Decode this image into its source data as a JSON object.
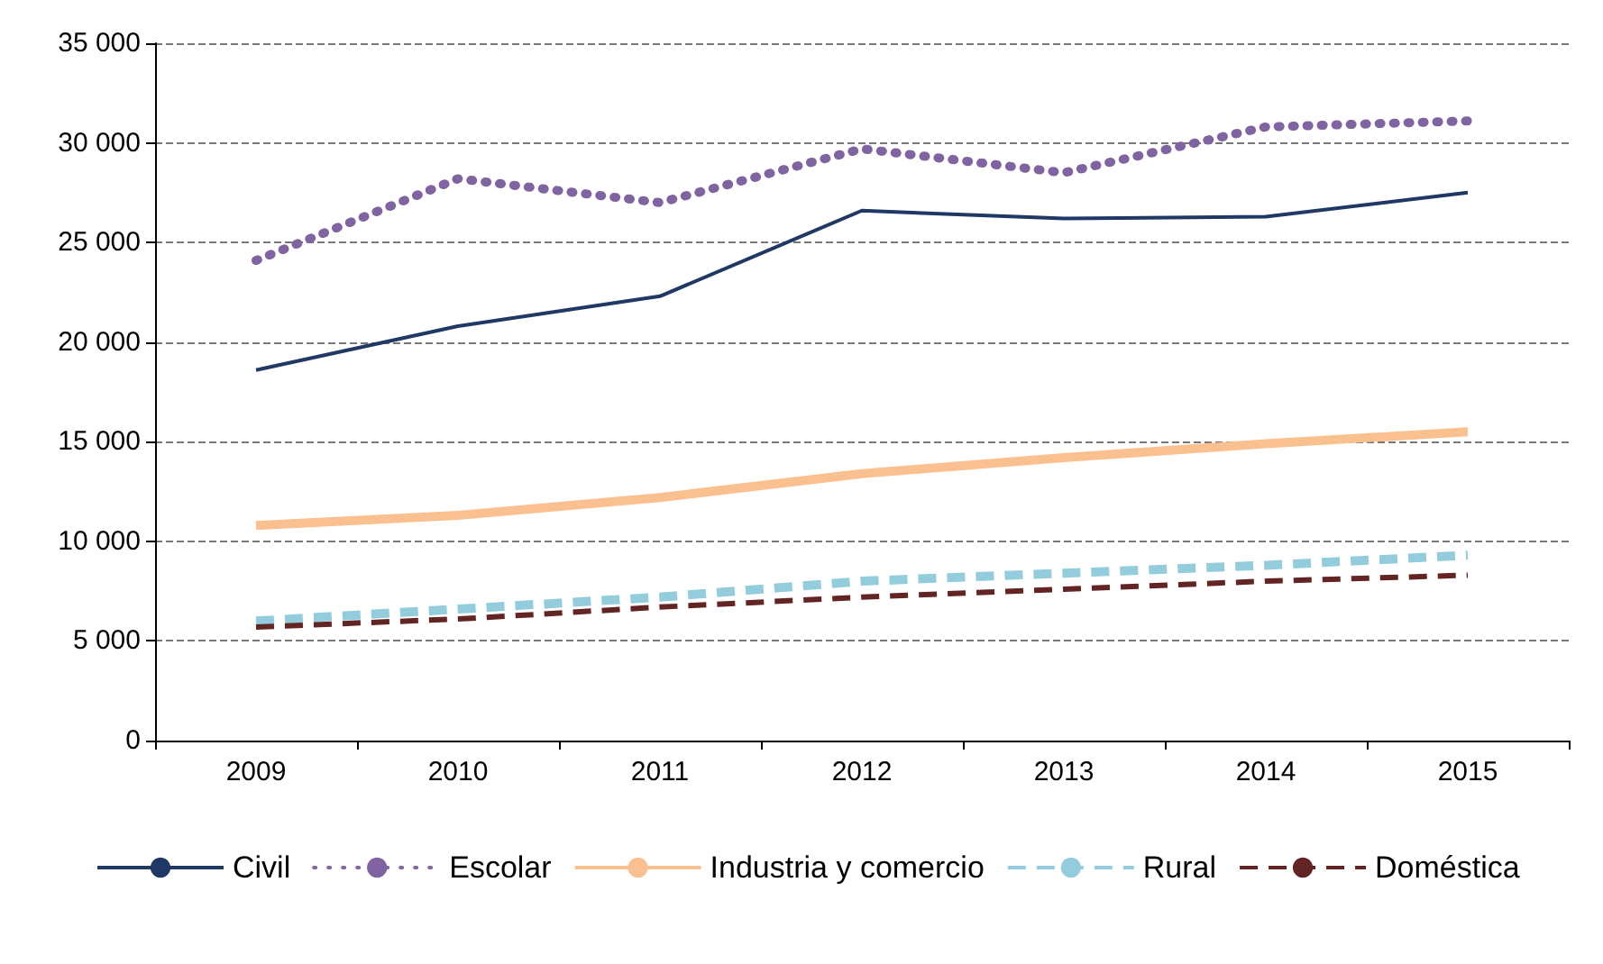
{
  "chart_data": {
    "type": "line",
    "categories": [
      "2009",
      "2010",
      "2011",
      "2012",
      "2013",
      "2014",
      "2015"
    ],
    "series": [
      {
        "name": "Civil",
        "color": "#1f3864",
        "line_style": "solid",
        "values": [
          18600,
          20800,
          22300,
          26600,
          26200,
          26300,
          27500
        ]
      },
      {
        "name": "Escolar",
        "color": "#8064a2",
        "line_style": "dotted",
        "values": [
          24100,
          28200,
          27000,
          29700,
          28500,
          30800,
          31100
        ]
      },
      {
        "name": "Industria y comercio",
        "color": "#fac090",
        "line_style": "solid",
        "values": [
          10800,
          11300,
          12200,
          13400,
          14200,
          14900,
          15500
        ]
      },
      {
        "name": "Rural",
        "color": "#93cddd",
        "line_style": "dashed",
        "values": [
          6000,
          6600,
          7200,
          8000,
          8400,
          8800,
          9300
        ]
      },
      {
        "name": "Doméstica",
        "color": "#632523",
        "line_style": "dashed",
        "values": [
          5700,
          6100,
          6700,
          7200,
          7600,
          8000,
          8300
        ]
      }
    ],
    "ylim": [
      0,
      35000
    ],
    "yticks": [
      {
        "value": 0,
        "label": "0"
      },
      {
        "value": 5000,
        "label": "5 000"
      },
      {
        "value": 10000,
        "label": "10 000"
      },
      {
        "value": 15000,
        "label": "15 000"
      },
      {
        "value": 20000,
        "label": "20 000"
      },
      {
        "value": 25000,
        "label": "25 000"
      },
      {
        "value": 30000,
        "label": "30 000"
      },
      {
        "value": 35000,
        "label": "35 000"
      }
    ],
    "grid": "y",
    "legend": "bottom",
    "marker": "none"
  }
}
